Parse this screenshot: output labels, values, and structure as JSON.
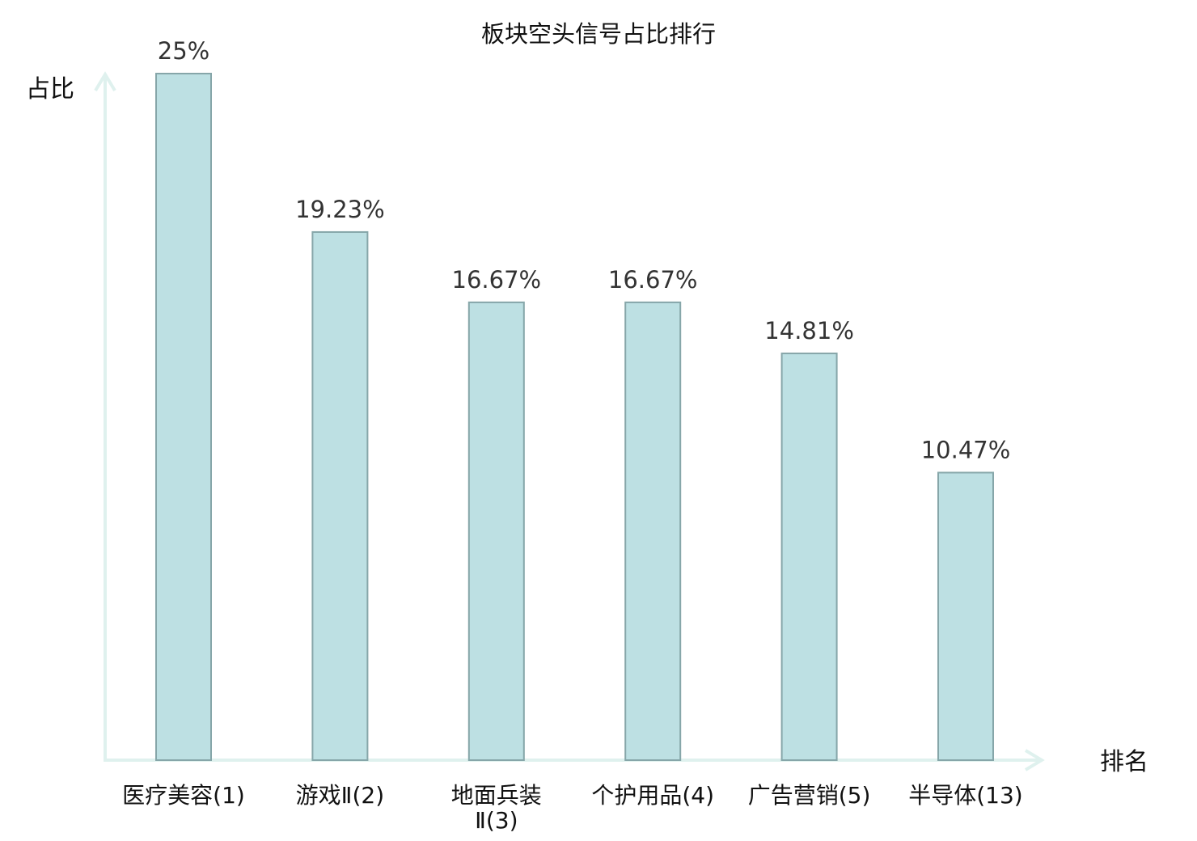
{
  "chart_data": {
    "type": "bar",
    "title": "板块空头信号占比排行",
    "ylabel": "占比",
    "xlabel": "排名",
    "ylim": [
      0,
      25
    ],
    "grid": false,
    "categories": [
      {
        "line1": "医疗美容(1)",
        "line2": ""
      },
      {
        "line1": "游戏Ⅱ(2)",
        "line2": ""
      },
      {
        "line1": "地面兵装",
        "line2": "Ⅱ(3)"
      },
      {
        "line1": "个护用品(4)",
        "line2": ""
      },
      {
        "line1": "广告营销(5)",
        "line2": ""
      },
      {
        "line1": "半导体(13)",
        "line2": ""
      }
    ],
    "values": [
      25,
      19.23,
      16.67,
      16.67,
      14.81,
      10.47
    ],
    "value_labels": [
      "25%",
      "19.23%",
      "16.67%",
      "16.67%",
      "14.81%",
      "10.47%"
    ],
    "highlight_index": 5,
    "colors": {
      "bar_fill": "#bde0e3",
      "bar_stroke": "#86a6a9",
      "axis": "#dff1ee",
      "highlight_text": "#e5191e",
      "text": "#111111"
    }
  }
}
